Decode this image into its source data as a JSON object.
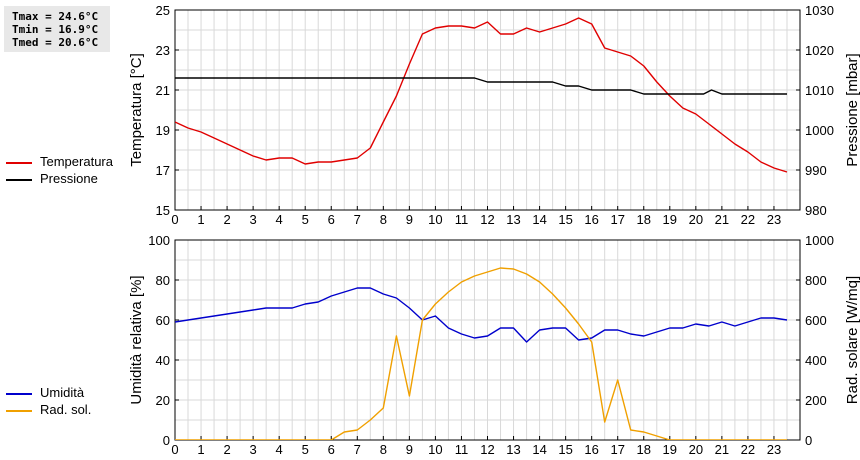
{
  "stats": {
    "tmax": "Tmax = 24.6°C",
    "tmin": "Tmin = 16.9°C",
    "tmed": "Tmed = 20.6°C"
  },
  "legend_top": [
    {
      "label": "Temperatura",
      "color": "#e00000"
    },
    {
      "label": "Pressione",
      "color": "#000000"
    }
  ],
  "legend_bottom": [
    {
      "label": "Umidità",
      "color": "#0000cc"
    },
    {
      "label": "Rad. sol.",
      "color": "#f0a000"
    }
  ],
  "chart_data": [
    {
      "type": "line",
      "grid": true,
      "xlim": [
        0,
        24
      ],
      "xticks": [
        0,
        1,
        2,
        3,
        4,
        5,
        6,
        7,
        8,
        9,
        10,
        11,
        12,
        13,
        14,
        15,
        16,
        17,
        18,
        19,
        20,
        21,
        22,
        23
      ],
      "ylabel": "Temperatura [°C]",
      "ylim": [
        15,
        25
      ],
      "yticks": [
        15,
        17,
        19,
        21,
        23,
        25
      ],
      "y2label": "Pressione [mbar]",
      "y2lim": [
        980,
        1030
      ],
      "y2ticks": [
        980,
        990,
        1000,
        1010,
        1020,
        1030
      ],
      "series": [
        {
          "name": "Temperatura",
          "axis": "left",
          "color": "#e00000",
          "x": [
            0,
            0.5,
            1,
            1.5,
            2,
            2.5,
            3,
            3.5,
            4,
            4.5,
            5,
            5.5,
            6,
            6.5,
            7,
            7.5,
            8,
            8.5,
            9,
            9.5,
            10,
            10.5,
            11,
            11.5,
            12,
            12.5,
            13,
            13.5,
            14,
            14.5,
            15,
            15.5,
            16,
            16.5,
            17,
            17.5,
            18,
            18.5,
            19,
            19.5,
            20,
            20.5,
            21,
            21.5,
            22,
            22.5,
            23,
            23.5
          ],
          "y": [
            19.4,
            19.1,
            18.9,
            18.6,
            18.3,
            18.0,
            17.7,
            17.5,
            17.6,
            17.6,
            17.3,
            17.4,
            17.4,
            17.5,
            17.6,
            18.1,
            19.4,
            20.7,
            22.3,
            23.8,
            24.1,
            24.2,
            24.2,
            24.1,
            24.4,
            23.8,
            23.8,
            24.1,
            23.9,
            24.1,
            24.3,
            24.6,
            24.3,
            23.1,
            22.9,
            22.7,
            22.2,
            21.4,
            20.7,
            20.1,
            19.8,
            19.3,
            18.8,
            18.3,
            17.9,
            17.4,
            17.1,
            16.9
          ]
        },
        {
          "name": "Pressione",
          "axis": "right",
          "color": "#000000",
          "x": [
            0,
            11.5,
            12,
            14.5,
            15,
            15.5,
            16,
            17.5,
            18,
            20.3,
            20.6,
            21,
            23.5
          ],
          "y": [
            1013,
            1013,
            1012,
            1012,
            1011,
            1011,
            1010,
            1010,
            1009,
            1009,
            1010,
            1009,
            1009
          ]
        }
      ]
    },
    {
      "type": "line",
      "grid": true,
      "xlim": [
        0,
        24
      ],
      "xticks": [
        0,
        1,
        2,
        3,
        4,
        5,
        6,
        7,
        8,
        9,
        10,
        11,
        12,
        13,
        14,
        15,
        16,
        17,
        18,
        19,
        20,
        21,
        22,
        23
      ],
      "ylabel": "Umidità relativa [%]",
      "ylim": [
        0,
        100
      ],
      "yticks": [
        0,
        20,
        40,
        60,
        80,
        100
      ],
      "y2label": "Rad. solare [W/mq]",
      "y2lim": [
        0,
        1000
      ],
      "y2ticks": [
        0,
        200,
        400,
        600,
        800,
        1000
      ],
      "series": [
        {
          "name": "Umidità",
          "axis": "left",
          "color": "#0000cc",
          "x": [
            0,
            0.5,
            1,
            1.5,
            2,
            2.5,
            3,
            3.5,
            4,
            4.5,
            5,
            5.5,
            6,
            6.5,
            7,
            7.5,
            8,
            8.5,
            9,
            9.5,
            10,
            10.5,
            11,
            11.5,
            12,
            12.5,
            13,
            13.5,
            14,
            14.5,
            15,
            15.5,
            16,
            16.5,
            17,
            17.5,
            18,
            18.5,
            19,
            19.5,
            20,
            20.5,
            21,
            21.5,
            22,
            22.5,
            23,
            23.5
          ],
          "y": [
            59,
            60,
            61,
            62,
            63,
            64,
            65,
            66,
            66,
            66,
            68,
            69,
            72,
            74,
            76,
            76,
            73,
            71,
            66,
            60,
            62,
            56,
            53,
            51,
            52,
            56,
            56,
            49,
            55,
            56,
            56,
            50,
            51,
            55,
            55,
            53,
            52,
            54,
            56,
            56,
            58,
            57,
            59,
            57,
            59,
            61,
            61,
            60
          ]
        },
        {
          "name": "Rad. sol.",
          "axis": "right",
          "color": "#f0a000",
          "x": [
            0,
            6,
            6.5,
            7,
            7.5,
            8,
            8.5,
            9,
            9.5,
            10,
            10.5,
            11,
            11.5,
            12,
            12.5,
            13,
            13.5,
            14,
            14.5,
            15,
            15.5,
            16,
            16.5,
            17,
            17.5,
            18,
            18.5,
            19,
            23.5
          ],
          "y": [
            0,
            0,
            40,
            50,
            100,
            160,
            520,
            220,
            600,
            680,
            740,
            790,
            820,
            840,
            860,
            855,
            830,
            790,
            730,
            660,
            580,
            490,
            90,
            300,
            50,
            40,
            20,
            0,
            0
          ]
        }
      ]
    }
  ]
}
